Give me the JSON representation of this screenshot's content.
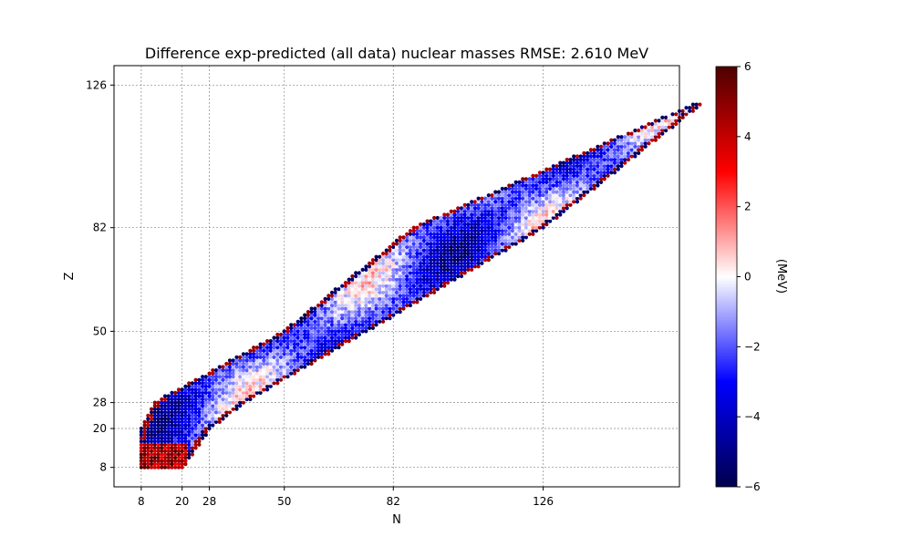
{
  "chart_data": {
    "type": "scatter",
    "title": "Difference exp-predicted (all data) nuclear masses  RMSE: 2.610 MeV",
    "xlabel": "N",
    "ylabel": "Z",
    "xlim": [
      0,
      166
    ],
    "ylim": [
      2,
      132
    ],
    "xticks": [
      8,
      20,
      28,
      50,
      82,
      126
    ],
    "yticks": [
      8,
      20,
      28,
      50,
      82,
      126
    ],
    "grid": true,
    "colorbar": {
      "label": "(MeV)",
      "range": [
        -6,
        6
      ],
      "ticks": [
        6,
        4,
        2,
        0,
        -2,
        -4,
        -6
      ],
      "tick_labels": [
        "6",
        "4",
        "2",
        "0",
        "−2",
        "−4",
        "−6"
      ],
      "colormap": "seismic"
    },
    "point_band": {
      "z_range": [
        8,
        120
      ],
      "description_points": [
        {
          "z": 8,
          "n_min": 8,
          "n_max": 20
        },
        {
          "z": 20,
          "n_min": 8,
          "n_max": 28
        },
        {
          "z": 28,
          "n_min": 12,
          "n_max": 38
        },
        {
          "z": 50,
          "n_min": 50,
          "n_max": 74
        },
        {
          "z": 82,
          "n_min": 88,
          "n_max": 126
        },
        {
          "z": 120,
          "n_min": 170,
          "n_max": 172
        }
      ]
    }
  }
}
